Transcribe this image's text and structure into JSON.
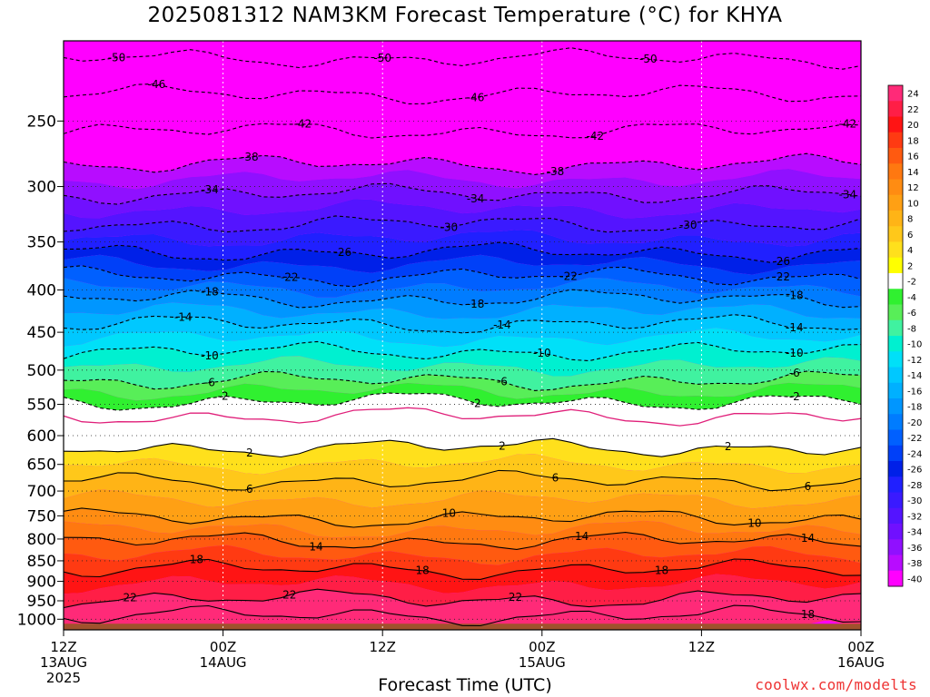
{
  "title": "2025081312 NAM3KM Forecast Temperature (°C) for KHYA",
  "credit": "coolwx.com/modelts",
  "chart_data": {
    "type": "heatmap",
    "title": "2025081312 NAM3KM Forecast Temperature (°C) for KHYA",
    "xlabel": "Forecast Time (UTC)",
    "ylabel": "",
    "y_log_pressure": true,
    "ylim": [
      1030,
      200
    ],
    "xlim": [
      0,
      60
    ],
    "x_ticks": [
      {
        "hour": 0,
        "lines": [
          "12Z",
          "13AUG",
          "2025"
        ]
      },
      {
        "hour": 12,
        "lines": [
          "00Z",
          "14AUG"
        ]
      },
      {
        "hour": 24,
        "lines": [
          "12Z"
        ]
      },
      {
        "hour": 36,
        "lines": [
          "00Z",
          "15AUG"
        ]
      },
      {
        "hour": 48,
        "lines": [
          "12Z"
        ]
      },
      {
        "hour": 60,
        "lines": [
          "00Z",
          "16AUG"
        ]
      }
    ],
    "y_ticks": [
      250,
      300,
      350,
      400,
      450,
      500,
      550,
      600,
      650,
      700,
      750,
      800,
      850,
      900,
      950,
      1000
    ],
    "grid": true,
    "colorbar": {
      "position": "right",
      "levels": [
        24,
        22,
        20,
        18,
        16,
        14,
        12,
        10,
        8,
        6,
        4,
        2,
        -2,
        -4,
        -6,
        -8,
        -10,
        -12,
        -14,
        -16,
        -18,
        -20,
        -22,
        -24,
        -26,
        -28,
        -30,
        -32,
        -34,
        -36,
        -38,
        -40
      ],
      "colors": [
        "#ff2a78",
        "#ff1e46",
        "#ff1414",
        "#ff3a12",
        "#ff5a10",
        "#ff7810",
        "#ff8c12",
        "#ffa014",
        "#ffb416",
        "#ffc81a",
        "#ffe01c",
        "#ffff00",
        "#ffffff",
        "#30f030",
        "#58ee58",
        "#40f2a0",
        "#00f0d0",
        "#00e0f8",
        "#00c8ff",
        "#00b0ff",
        "#0096ff",
        "#007cff",
        "#0060ff",
        "#0040f8",
        "#0020e8",
        "#2020ff",
        "#3a1aff",
        "#5414ff",
        "#7010ff",
        "#9010ff",
        "#b80cff",
        "#ff00ff"
      ]
    },
    "isotherms_labeled": [
      {
        "value": -50,
        "p": 210,
        "at_hours": [
          4,
          24,
          44
        ]
      },
      {
        "value": -46,
        "p": 232,
        "at_hours": [
          7,
          31
        ]
      },
      {
        "value": -42,
        "p": 257,
        "at_hours": [
          18,
          40,
          59
        ]
      },
      {
        "value": -38,
        "p": 282,
        "at_hours": [
          14,
          37
        ]
      },
      {
        "value": -34,
        "p": 306,
        "at_hours": [
          11,
          31,
          59
        ]
      },
      {
        "value": -30,
        "p": 333,
        "at_hours": [
          29,
          47
        ]
      },
      {
        "value": -26,
        "p": 360,
        "at_hours": [
          21,
          54
        ]
      },
      {
        "value": -22,
        "p": 385,
        "at_hours": [
          17,
          38,
          54
        ]
      },
      {
        "value": -18,
        "p": 410,
        "at_hours": [
          11,
          31,
          55
        ]
      },
      {
        "value": -14,
        "p": 440,
        "at_hours": [
          9,
          33,
          55
        ]
      },
      {
        "value": -10,
        "p": 475,
        "at_hours": [
          11,
          36,
          55
        ]
      },
      {
        "value": -6,
        "p": 515,
        "at_hours": [
          11,
          33,
          55
        ]
      },
      {
        "value": -2,
        "p": 545,
        "at_hours": [
          12,
          31,
          55
        ]
      },
      {
        "value": 2,
        "p": 620,
        "at_hours": [
          14,
          33,
          50
        ]
      },
      {
        "value": 6,
        "p": 680,
        "at_hours": [
          14,
          37,
          56
        ]
      },
      {
        "value": 10,
        "p": 755,
        "at_hours": [
          29,
          52
        ]
      },
      {
        "value": 14,
        "p": 805,
        "at_hours": [
          19,
          39,
          56
        ]
      },
      {
        "value": 18,
        "p": 870,
        "at_hours": [
          10,
          27,
          45
        ]
      },
      {
        "value": 22,
        "p": 945,
        "at_hours": [
          5,
          17,
          34
        ]
      },
      {
        "value": 18,
        "p": 990,
        "at_hours": [
          56
        ]
      }
    ],
    "freezing_line_p": 568,
    "surface_color": "#a0522d"
  }
}
